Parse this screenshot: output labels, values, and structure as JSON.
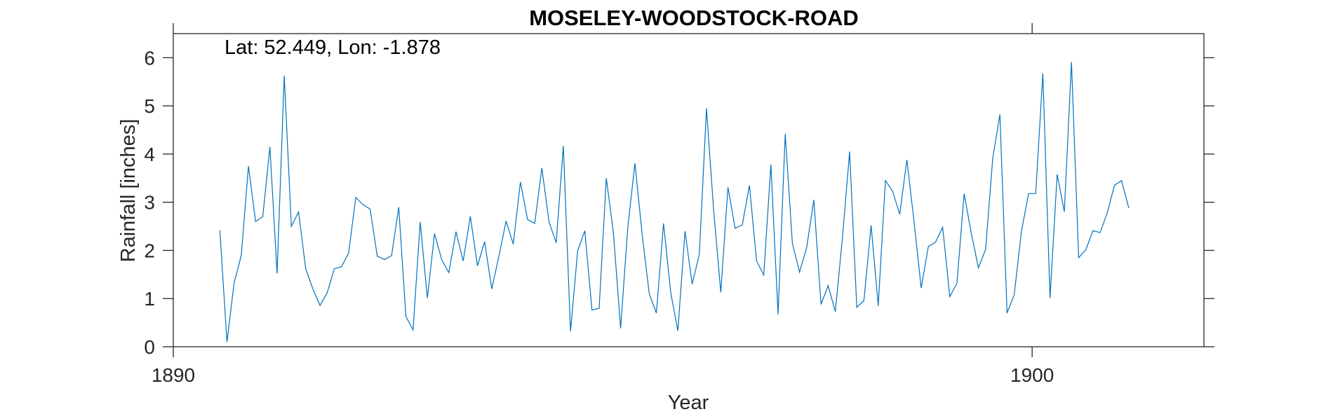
{
  "chart_data": {
    "type": "line",
    "title": "MOSELEY-WOODSTOCK-ROAD",
    "annotation": "Lat: 52.449, Lon: -1.878",
    "xlabel": "Year",
    "ylabel": "Rainfall [inches]",
    "xlim": [
      1890,
      1902
    ],
    "ylim": [
      0,
      6.5
    ],
    "xticks": [
      1890,
      1900
    ],
    "yticks": [
      0,
      1,
      2,
      3,
      4,
      5,
      6
    ],
    "grid": false,
    "series_color": "#0072BD",
    "series": [
      {
        "x_start": 1890.5417,
        "x_step": 0.08333,
        "values": [
          2.42,
          0.1,
          1.33,
          1.9,
          3.75,
          2.6,
          2.7,
          4.15,
          1.52,
          5.63,
          2.5,
          2.8,
          1.62,
          1.2,
          0.86,
          1.12,
          1.62,
          1.66,
          1.95,
          3.1,
          2.95,
          2.86,
          1.88,
          1.81,
          1.89,
          2.9,
          0.63,
          0.35,
          2.59,
          1.01,
          2.35,
          1.81,
          1.54,
          2.39,
          1.78,
          2.71,
          1.68,
          2.18,
          1.2,
          1.88,
          2.61,
          2.13,
          3.42,
          2.64,
          2.56,
          3.71,
          2.59,
          2.16,
          4.17,
          0.32,
          1.99,
          2.41,
          0.76,
          0.8,
          3.5,
          2.36,
          0.38,
          2.47,
          3.81,
          2.35,
          1.1,
          0.7,
          2.56,
          1.13,
          0.33,
          2.4,
          1.3,
          1.92,
          4.95,
          2.83,
          1.13,
          3.31,
          2.46,
          2.53,
          3.35,
          1.78,
          1.49,
          3.78,
          0.67,
          4.42,
          2.15,
          1.55,
          2.06,
          3.05,
          0.88,
          1.27,
          0.73,
          2.27,
          4.05,
          0.82,
          0.96,
          2.52,
          0.85,
          3.45,
          3.23,
          2.75,
          3.88,
          2.6,
          1.22,
          2.08,
          2.17,
          2.48,
          1.04,
          1.32,
          3.18,
          2.35,
          1.64,
          2.02,
          3.92,
          4.82,
          0.7,
          1.08,
          2.39,
          3.18,
          3.18,
          5.67,
          1.01,
          3.58,
          2.8,
          5.91,
          1.85,
          2.01,
          2.41,
          2.37,
          2.78,
          3.35,
          3.45,
          2.88
        ]
      }
    ]
  }
}
